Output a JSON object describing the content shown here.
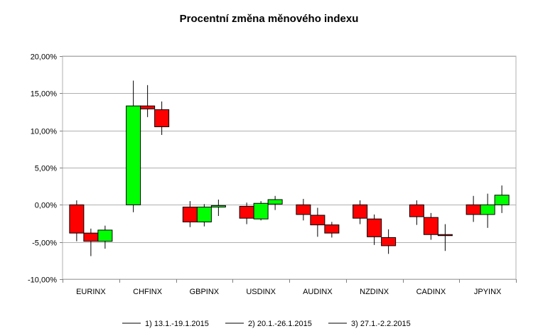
{
  "chart_data": {
    "type": "candlestick",
    "title": "Procentní změna měnového indexu",
    "xlabel": "",
    "ylabel": "",
    "ylim": [
      -10,
      20
    ],
    "yticks": [
      -10,
      -5,
      0,
      5,
      10,
      15,
      20
    ],
    "ytick_labels": [
      "-10,00%",
      "-5,00%",
      "0,00%",
      "5,00%",
      "10,00%",
      "15,00%",
      "20,00%"
    ],
    "grid": true,
    "legend_position": "bottom",
    "colors": {
      "up": "#00ff00",
      "down": "#ff0000"
    },
    "categories": [
      "EURINX",
      "CHFINX",
      "GBPINX",
      "USDINX",
      "AUDINX",
      "NZDINX",
      "CADINX",
      "JPYINX"
    ],
    "series": [
      {
        "name": "1) 13.1.-19.1.2015",
        "values": [
          {
            "open": 0.0,
            "high": 0.6,
            "low": -4.9,
            "close": -3.8
          },
          {
            "open": 0.0,
            "high": 16.7,
            "low": -1.0,
            "close": 13.3
          },
          {
            "open": -0.3,
            "high": 0.5,
            "low": -3.0,
            "close": -2.3
          },
          {
            "open": -0.2,
            "high": 0.3,
            "low": -2.6,
            "close": -1.8
          },
          {
            "open": 0.0,
            "high": 0.8,
            "low": -2.1,
            "close": -1.3
          },
          {
            "open": 0.0,
            "high": 0.6,
            "low": -2.6,
            "close": -1.8
          },
          {
            "open": 0.0,
            "high": 0.6,
            "low": -2.7,
            "close": -1.6
          },
          {
            "open": 0.0,
            "high": 1.2,
            "low": -2.3,
            "close": -1.3
          }
        ]
      },
      {
        "name": "2) 20.1.-26.1.2015",
        "values": [
          {
            "open": -3.8,
            "high": -3.2,
            "low": -6.9,
            "close": -4.9
          },
          {
            "open": 13.3,
            "high": 16.1,
            "low": 11.8,
            "close": 12.9
          },
          {
            "open": -2.3,
            "high": 0.1,
            "low": -2.9,
            "close": -0.3
          },
          {
            "open": -1.9,
            "high": 0.5,
            "low": -2.1,
            "close": 0.2
          },
          {
            "open": -1.4,
            "high": -0.4,
            "low": -4.3,
            "close": -2.7
          },
          {
            "open": -1.9,
            "high": -1.3,
            "low": -5.4,
            "close": -4.3
          },
          {
            "open": -1.7,
            "high": -1.1,
            "low": -4.7,
            "close": -4.0
          },
          {
            "open": -1.3,
            "high": 1.5,
            "low": -3.1,
            "close": 0.0
          }
        ]
      },
      {
        "name": "3) 27.1.-2.2.2015",
        "values": [
          {
            "open": -4.9,
            "high": -2.8,
            "low": -5.9,
            "close": -3.4
          },
          {
            "open": 12.8,
            "high": 13.9,
            "low": 9.4,
            "close": 10.5
          },
          {
            "open": -0.3,
            "high": 0.7,
            "low": -1.5,
            "close": -0.1
          },
          {
            "open": 0.1,
            "high": 1.2,
            "low": -0.7,
            "close": 0.7
          },
          {
            "open": -2.7,
            "high": -2.3,
            "low": -4.4,
            "close": -3.8
          },
          {
            "open": -4.4,
            "high": -3.3,
            "low": -6.6,
            "close": -5.5
          },
          {
            "open": -4.0,
            "high": -2.6,
            "low": -6.2,
            "close": -4.1
          },
          {
            "open": 0.0,
            "high": 2.6,
            "low": -1.1,
            "close": 1.3
          }
        ]
      }
    ]
  }
}
